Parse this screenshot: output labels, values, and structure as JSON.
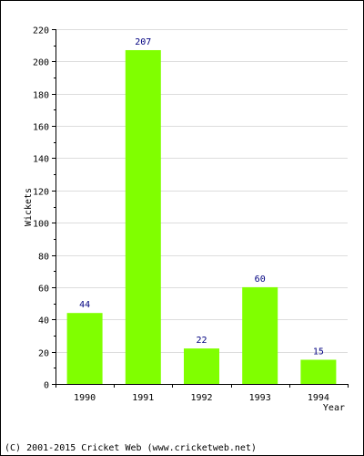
{
  "chart_data": {
    "type": "bar",
    "title": "",
    "xlabel": "Year",
    "ylabel": "Wickets",
    "categories": [
      "1990",
      "1991",
      "1992",
      "1993",
      "1994"
    ],
    "values": [
      44,
      207,
      22,
      60,
      15
    ],
    "data_labels": [
      "44",
      "207",
      "22",
      "60",
      "15"
    ],
    "ylim": [
      0,
      220
    ],
    "yticks": [
      0,
      20,
      40,
      60,
      80,
      100,
      120,
      140,
      160,
      180,
      200,
      220
    ],
    "ytick_labels": [
      "0",
      "20",
      "40",
      "60",
      "80",
      "100",
      "120",
      "140",
      "160",
      "180",
      "200",
      "220"
    ],
    "grid": true,
    "legend": "none"
  },
  "colors": {
    "bar": "#80ff00",
    "data_label": "#000080",
    "grid": "#dddddd",
    "axis": "#000000"
  },
  "footer": {
    "credit": "(C) 2001-2015 Cricket Web (www.cricketweb.net)"
  }
}
